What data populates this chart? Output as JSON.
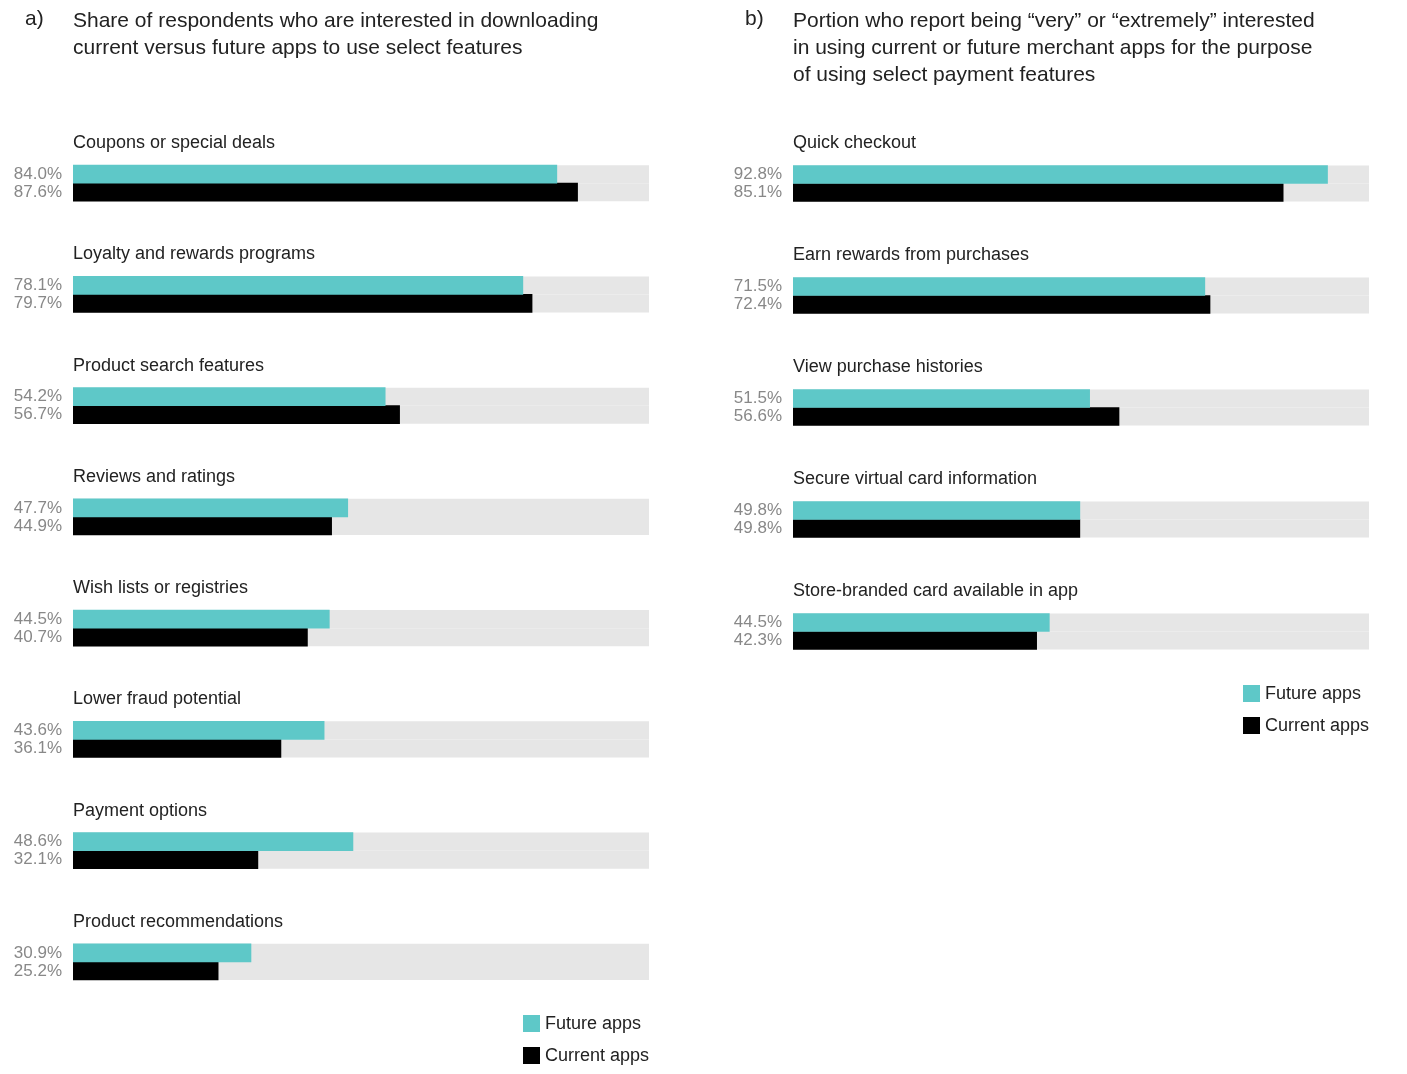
{
  "chart_data": [
    {
      "type": "bar",
      "orientation": "horizontal",
      "title": "Share of respondents who are interested in downloading current versus future apps to use select features",
      "annotations": [
        "a)"
      ],
      "categories": [
        "Coupons or special deals",
        "Loyalty and rewards programs",
        "Product search features",
        "Reviews and ratings",
        "Wish lists or registries",
        "Lower fraud potential",
        "Payment options",
        "Product recommendations"
      ],
      "series": [
        {
          "name": "Future apps",
          "color": "#5ec8c8",
          "values": [
            84.0,
            78.1,
            54.2,
            47.7,
            44.5,
            43.6,
            48.6,
            30.9
          ],
          "value_labels": [
            "84.0%",
            "78.1%",
            "54.2%",
            "47.7%",
            "44.5%",
            "43.6%",
            "48.6%",
            "30.9%"
          ]
        },
        {
          "name": "Current apps",
          "color": "#000000",
          "values": [
            87.6,
            79.7,
            56.7,
            44.9,
            40.7,
            36.1,
            32.1,
            25.2
          ],
          "value_labels": [
            "87.6%",
            "79.7%",
            "56.7%",
            "44.9%",
            "40.7%",
            "36.1%",
            "32.1%",
            "25.2%"
          ]
        }
      ],
      "xlim": [
        0,
        100
      ],
      "tick_labels": false,
      "grid": false,
      "legend": "bottom right"
    },
    {
      "type": "bar",
      "orientation": "horizontal",
      "title": "Portion who report being “very” or “extremely” interested in using current or future merchant apps for the purpose of using select payment features",
      "annotations": [
        "b)"
      ],
      "categories": [
        "Quick checkout",
        "Earn rewards from purchases",
        "View purchase histories",
        "Secure virtual card information",
        "Store-branded card available in app"
      ],
      "series": [
        {
          "name": "Future apps",
          "color": "#5ec8c8",
          "values": [
            92.8,
            71.5,
            51.5,
            49.8,
            44.5
          ],
          "value_labels": [
            "92.8%",
            "71.5%",
            "51.5%",
            "49.8%",
            "44.5%"
          ]
        },
        {
          "name": "Current apps",
          "color": "#000000",
          "values": [
            85.1,
            72.4,
            56.6,
            49.8,
            42.3
          ],
          "value_labels": [
            "85.1%",
            "72.4%",
            "56.6%",
            "49.8%",
            "42.3%"
          ]
        }
      ],
      "xlim": [
        0,
        100
      ],
      "tick_labels": false,
      "grid": false,
      "legend": "bottom right"
    }
  ]
}
